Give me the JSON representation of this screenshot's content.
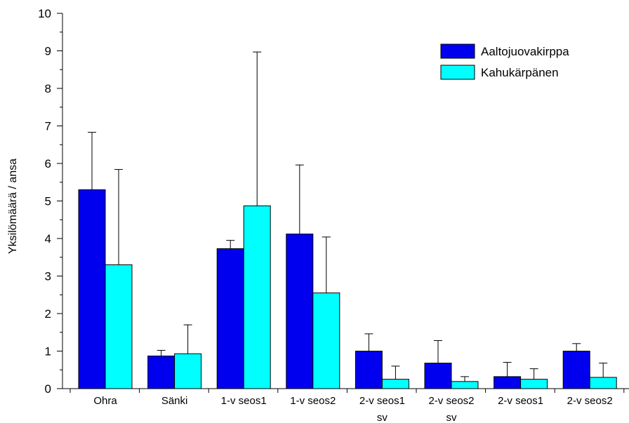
{
  "chart_data": {
    "type": "bar",
    "ylabel": "Yksilömäärä / ansa",
    "ylim": [
      0,
      10
    ],
    "yticks": [
      0,
      1,
      2,
      3,
      4,
      5,
      6,
      7,
      8,
      9,
      10
    ],
    "grid": false,
    "legend_position": "top-right",
    "categories": [
      [
        "Ohra"
      ],
      [
        "Sänki"
      ],
      [
        "1-v seos1"
      ],
      [
        "1-v seos2"
      ],
      [
        "2-v seos1",
        "sv"
      ],
      [
        "2-v seos2",
        "sv"
      ],
      [
        "2-v seos1"
      ],
      [
        "2-v seos2"
      ]
    ],
    "series": [
      {
        "name": "Aaltojuovakirppa",
        "color": "#0000ee",
        "values": [
          5.3,
          0.87,
          3.73,
          4.12,
          1.0,
          0.68,
          0.32,
          1.0
        ],
        "error_upper": [
          6.83,
          1.02,
          3.95,
          5.96,
          1.46,
          1.28,
          0.7,
          1.2
        ]
      },
      {
        "name": "Kahukärpänen",
        "color": "#00ffff",
        "values": [
          3.3,
          0.93,
          4.87,
          2.55,
          0.25,
          0.19,
          0.25,
          0.3
        ],
        "error_upper": [
          5.84,
          1.7,
          8.97,
          4.04,
          0.6,
          0.32,
          0.53,
          0.68
        ]
      }
    ]
  }
}
